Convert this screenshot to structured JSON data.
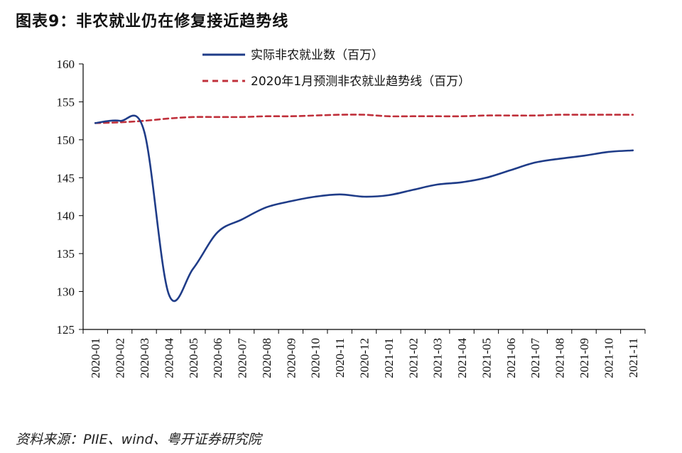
{
  "title": "图表9：非农就业仍在修复接近趋势线",
  "source": "资料来源：PIIE、wind、粤开证券研究院",
  "chart_data": {
    "type": "line",
    "x": [
      "2020-01",
      "2020-02",
      "2020-03",
      "2020-04",
      "2020-05",
      "2020-06",
      "2020-07",
      "2020-08",
      "2020-09",
      "2020-10",
      "2020-11",
      "2020-12",
      "2021-01",
      "2021-02",
      "2021-03",
      "2021-04",
      "2021-05",
      "2021-06",
      "2021-07",
      "2021-08",
      "2021-09",
      "2021-10",
      "2021-11"
    ],
    "ylim": [
      125,
      160
    ],
    "yticks": [
      125,
      130,
      135,
      140,
      145,
      150,
      155,
      160
    ],
    "series": [
      {
        "name": "实际非农就业数（百万）",
        "color": "#1f3c88",
        "style": "solid",
        "values": [
          152.2,
          152.5,
          151.1,
          129.7,
          133.0,
          137.8,
          139.5,
          141.1,
          141.9,
          142.5,
          142.8,
          142.5,
          142.7,
          143.4,
          144.1,
          144.4,
          145.0,
          146.0,
          147.0,
          147.5,
          147.9,
          148.4,
          148.6
        ]
      },
      {
        "name": "2020年1月预测非农就业趋势线（百万）",
        "color": "#c0303b",
        "style": "dashed",
        "values": [
          152.2,
          152.3,
          152.5,
          152.8,
          153.0,
          153.0,
          153.0,
          153.1,
          153.1,
          153.2,
          153.3,
          153.3,
          153.1,
          153.1,
          153.1,
          153.1,
          153.2,
          153.2,
          153.2,
          153.3,
          153.3,
          153.3,
          153.3
        ]
      }
    ],
    "legend_position": "top-right"
  }
}
